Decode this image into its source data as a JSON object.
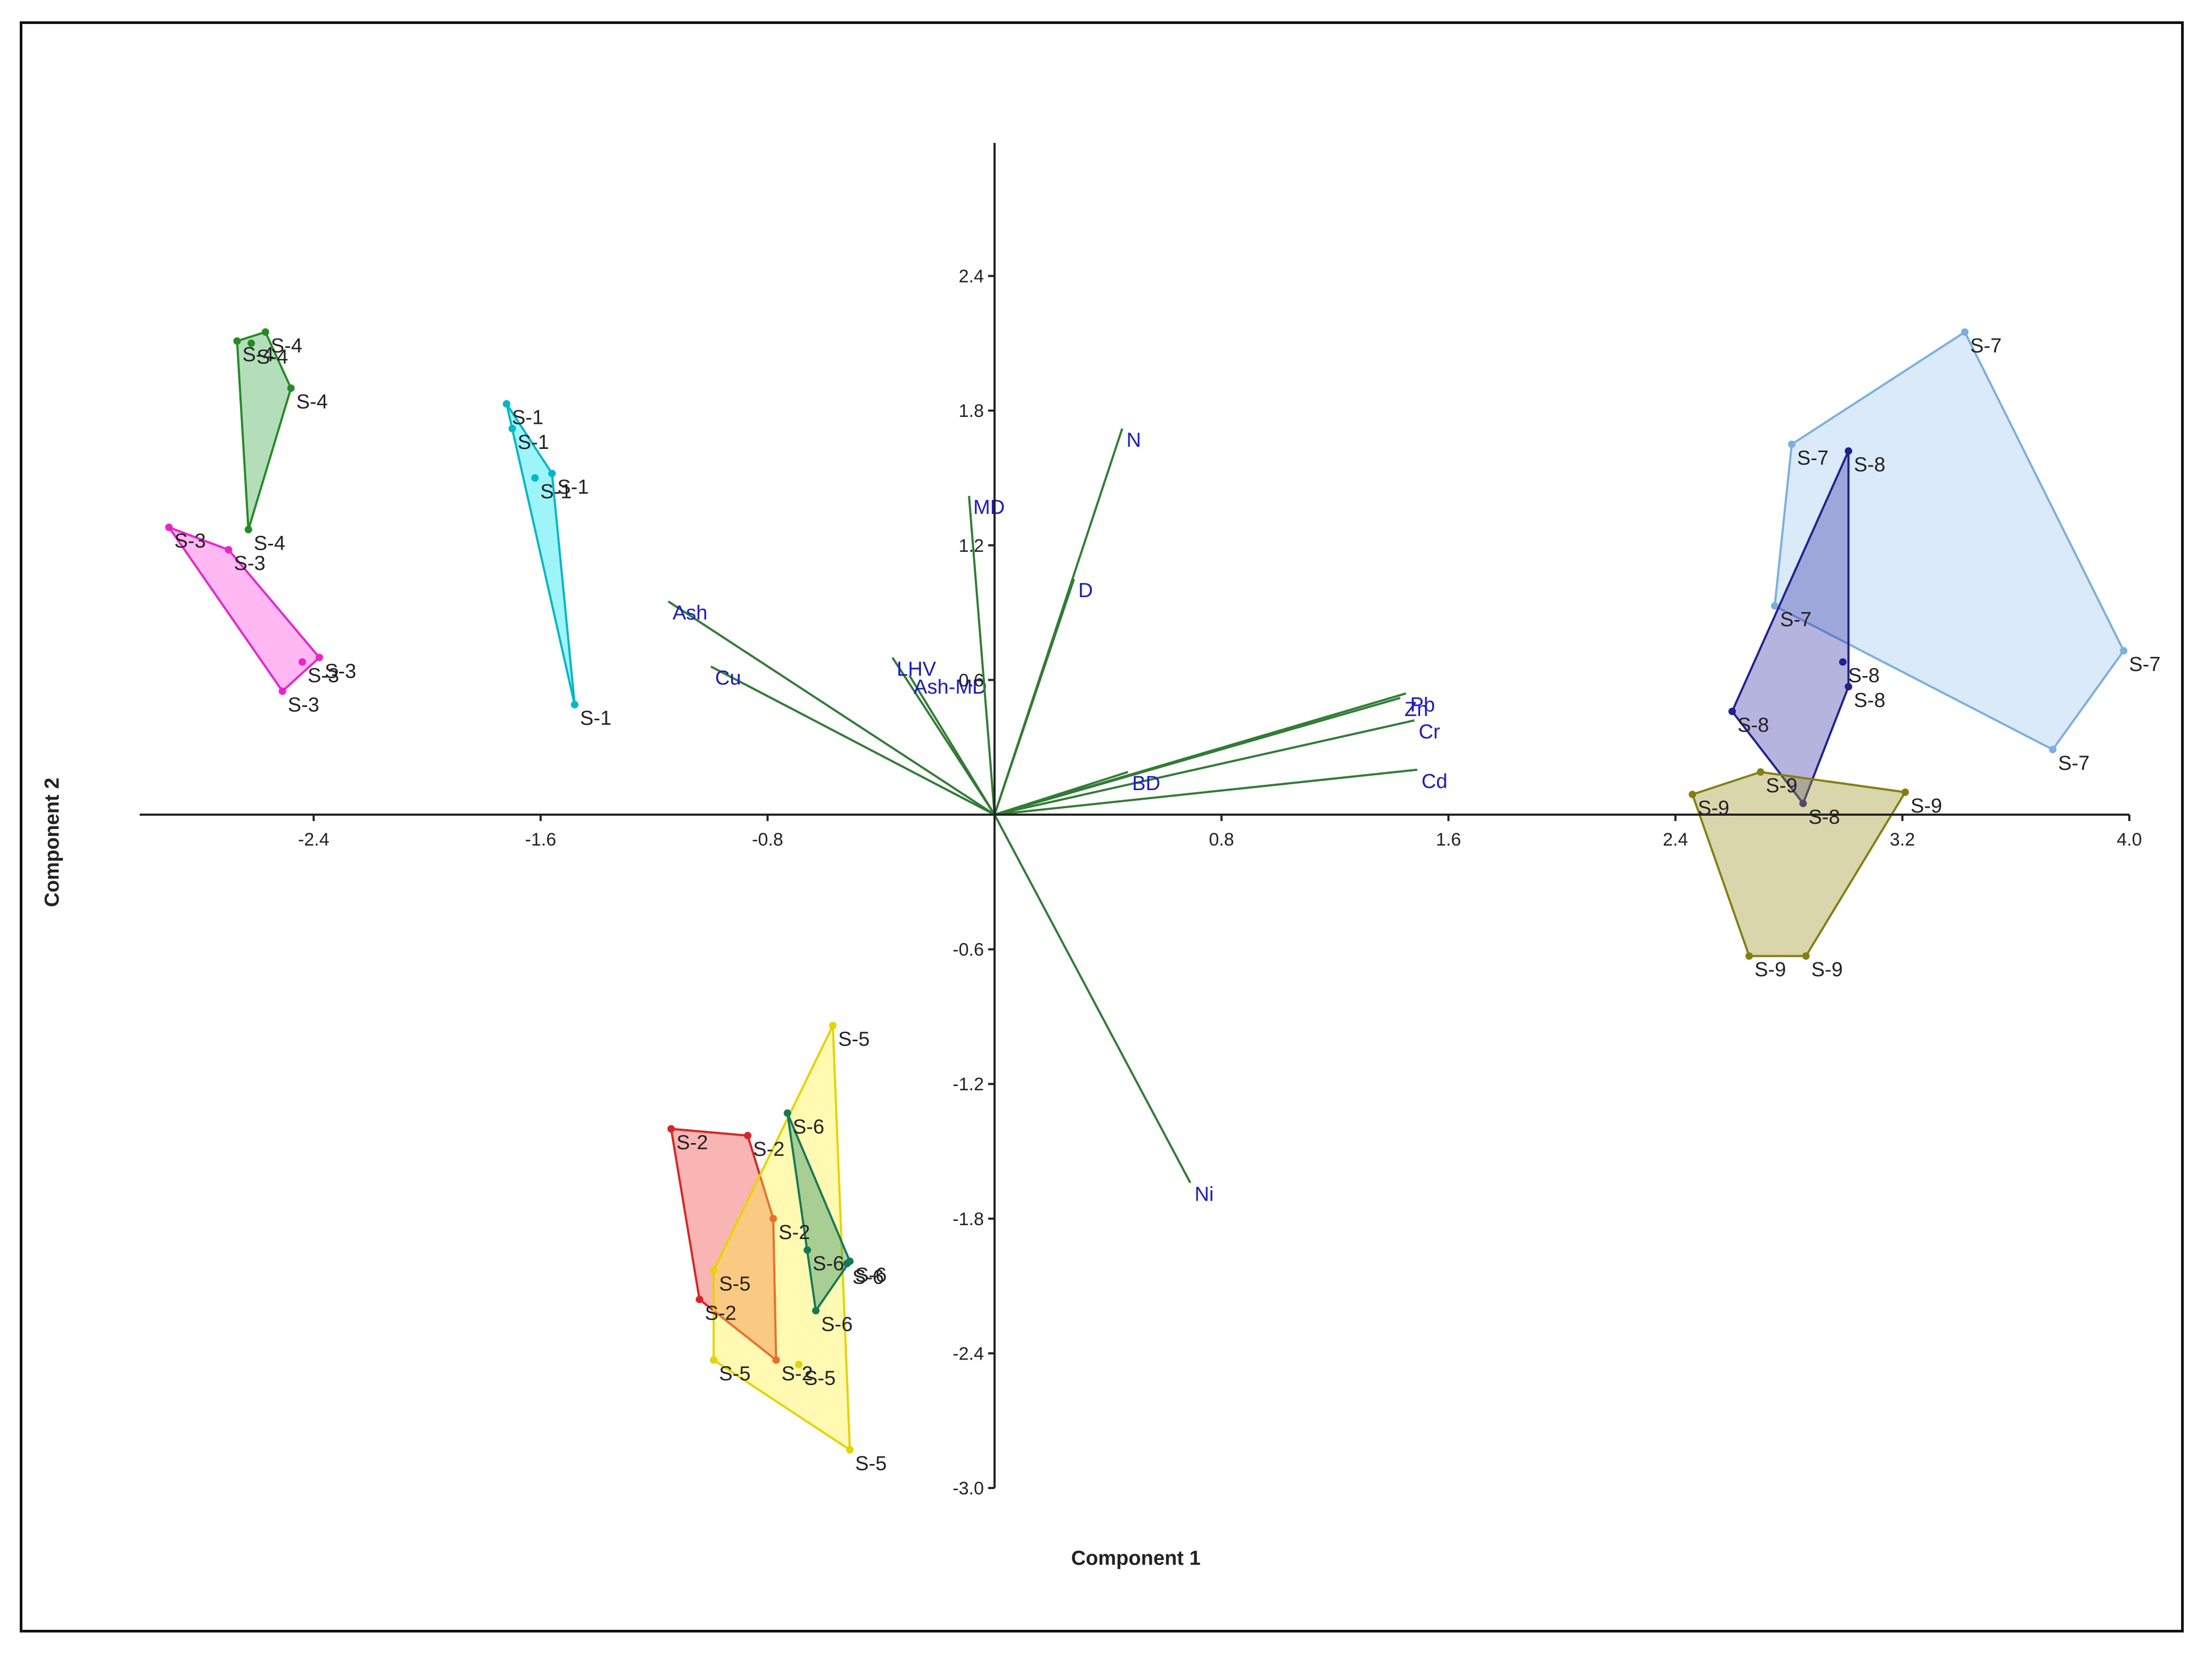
{
  "chart_data": {
    "type": "scatter",
    "subtype": "pca-biplot",
    "title": "",
    "xlabel": "Component 1",
    "ylabel": "Component 2",
    "xlim": [
      -3.0,
      4.0
    ],
    "ylim": [
      -3.0,
      3.0
    ],
    "x_ticks": [
      {
        "value": -2.4,
        "label": "-2.4"
      },
      {
        "value": -1.6,
        "label": "-1.6"
      },
      {
        "value": -0.8,
        "label": "-0.8"
      },
      {
        "value": 0.8,
        "label": "0.8"
      },
      {
        "value": 1.6,
        "label": "1.6"
      },
      {
        "value": 2.4,
        "label": "2.4"
      },
      {
        "value": 3.2,
        "label": "3.2"
      },
      {
        "value": 4.0,
        "label": "4.0"
      }
    ],
    "y_ticks": [
      {
        "value": 2.4,
        "label": "2.4"
      },
      {
        "value": 1.8,
        "label": "1.8"
      },
      {
        "value": 1.2,
        "label": "1.2"
      },
      {
        "value": 0.6,
        "label": "0.6"
      },
      {
        "value": -0.6,
        "label": "-0.6"
      },
      {
        "value": -1.2,
        "label": "-1.2"
      },
      {
        "value": -1.8,
        "label": "-1.8"
      },
      {
        "value": -2.4,
        "label": "-2.4"
      },
      {
        "value": -3.0,
        "label": "-3.0"
      }
    ],
    "groups": [
      {
        "name": "S-1",
        "label": "S-1",
        "fill": "#00e5ee",
        "stroke": "#00b8c8",
        "points": [
          [
            -1.72,
            1.83
          ],
          [
            -1.7,
            1.72
          ],
          [
            -1.62,
            1.5
          ],
          [
            -1.56,
            1.52
          ],
          [
            -1.48,
            0.49
          ]
        ]
      },
      {
        "name": "S-2",
        "label": "S-2",
        "fill": "#ee3b3b",
        "stroke": "#dd2222",
        "points": [
          [
            -1.14,
            -1.4
          ],
          [
            -0.87,
            -1.43
          ],
          [
            -0.78,
            -1.8
          ],
          [
            -1.04,
            -2.16
          ],
          [
            -0.77,
            -2.43
          ]
        ]
      },
      {
        "name": "S-3",
        "label": "S-3",
        "fill": "#ff44dd",
        "stroke": "#ee22cc",
        "points": [
          [
            -2.91,
            1.28
          ],
          [
            -2.7,
            1.18
          ],
          [
            -2.44,
            0.68
          ],
          [
            -2.38,
            0.7
          ],
          [
            -2.51,
            0.55
          ]
        ]
      },
      {
        "name": "S-4",
        "label": "S-4",
        "fill": "#3aa64a",
        "stroke": "#228b22",
        "points": [
          [
            -2.67,
            2.11
          ],
          [
            -2.57,
            2.15
          ],
          [
            -2.62,
            2.1
          ],
          [
            -2.48,
            1.9
          ],
          [
            -2.63,
            1.27
          ]
        ]
      },
      {
        "name": "S-5",
        "label": "S-5",
        "fill": "#ffee33",
        "stroke": "#e6d400",
        "points": [
          [
            -0.57,
            -0.94
          ],
          [
            -0.99,
            -2.03
          ],
          [
            -0.99,
            -2.43
          ],
          [
            -0.51,
            -2.83
          ],
          [
            -0.69,
            -2.45
          ]
        ]
      },
      {
        "name": "S-6",
        "label": "S-6",
        "fill": "#1e8a63",
        "stroke": "#127a55",
        "points": [
          [
            -0.73,
            -1.33
          ],
          [
            -0.66,
            -1.94
          ],
          [
            -0.51,
            -1.99
          ],
          [
            -0.63,
            -2.21
          ],
          [
            -0.52,
            -2.0
          ]
        ]
      },
      {
        "name": "S-7",
        "label": "S-7",
        "fill": "#9fc8f0",
        "stroke": "#7ab0e0",
        "points": [
          [
            3.42,
            2.15
          ],
          [
            2.81,
            1.65
          ],
          [
            2.75,
            0.93
          ],
          [
            3.98,
            0.73
          ],
          [
            3.73,
            0.29
          ]
        ]
      },
      {
        "name": "S-8",
        "label": "S-8",
        "fill": "#3a3aa8",
        "stroke": "#22228e",
        "points": [
          [
            3.01,
            1.62
          ],
          [
            2.99,
            0.68
          ],
          [
            3.01,
            0.57
          ],
          [
            2.6,
            0.46
          ],
          [
            2.85,
            0.05
          ]
        ]
      },
      {
        "name": "S-9",
        "label": "S-9",
        "fill": "#9a9422",
        "stroke": "#857f12",
        "points": [
          [
            2.7,
            0.19
          ],
          [
            2.46,
            0.09
          ],
          [
            3.21,
            0.1
          ],
          [
            2.66,
            -0.63
          ],
          [
            2.86,
            -0.63
          ]
        ]
      }
    ],
    "loadings": [
      {
        "name": "Ash",
        "x": -1.15,
        "y": 0.95
      },
      {
        "name": "Cu",
        "x": -1.0,
        "y": 0.66
      },
      {
        "name": "LHV",
        "x": -0.36,
        "y": 0.7
      },
      {
        "name": "Ash-MD",
        "x": -0.3,
        "y": 0.62
      },
      {
        "name": "MD",
        "x": -0.09,
        "y": 1.42
      },
      {
        "name": "D",
        "x": 0.28,
        "y": 1.05
      },
      {
        "name": "N",
        "x": 0.45,
        "y": 1.72
      },
      {
        "name": "Pb",
        "x": 1.45,
        "y": 0.54
      },
      {
        "name": "Zn",
        "x": 1.43,
        "y": 0.52
      },
      {
        "name": "Cr",
        "x": 1.48,
        "y": 0.42
      },
      {
        "name": "Cd",
        "x": 1.49,
        "y": 0.2
      },
      {
        "name": "BD",
        "x": 0.47,
        "y": 0.19
      },
      {
        "name": "Ni",
        "x": 0.69,
        "y": -1.64
      }
    ]
  }
}
